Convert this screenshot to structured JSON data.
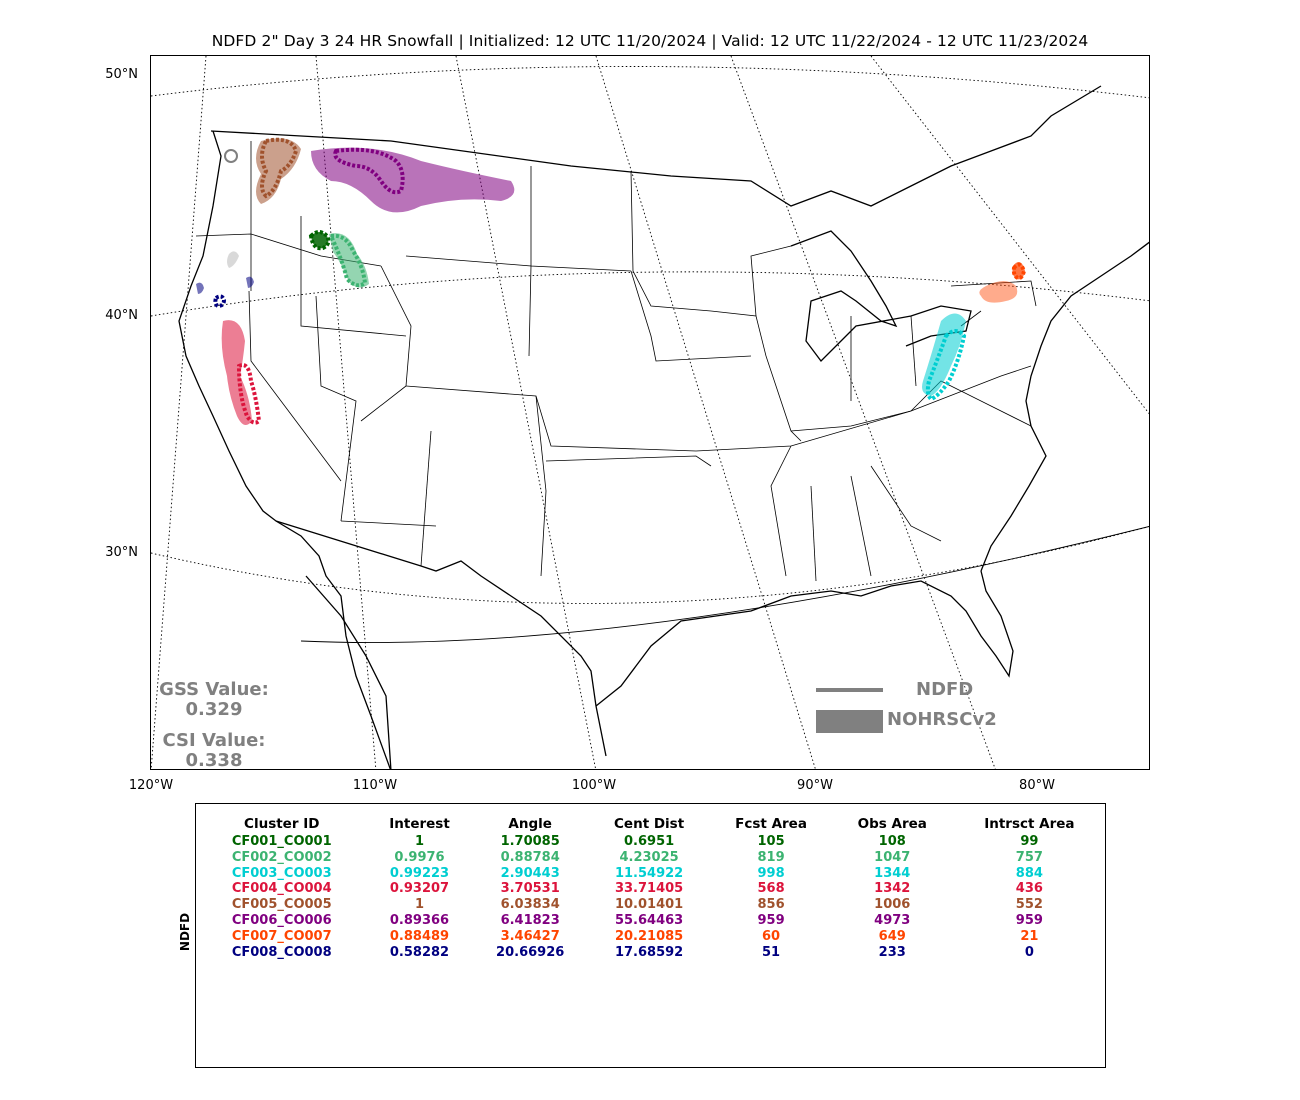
{
  "title": "NDFD 2\" Day 3 24 HR Snowfall | Initialized: 12 UTC 11/20/2024 | Valid: 12 UTC 11/22/2024 - 12 UTC 11/23/2024",
  "lat_labels": [
    "50°N",
    "40°N",
    "30°N"
  ],
  "lon_labels": [
    "120°W",
    "110°W",
    "100°W",
    "90°W",
    "80°W"
  ],
  "scores": {
    "gss_label": "GSS Value:",
    "gss_value": "0.329",
    "csi_label": "CSI Value:",
    "csi_value": "0.338"
  },
  "legend": {
    "forecast_label": "NDFD",
    "observed_label": "NOHRSCv2",
    "color": "#808080"
  },
  "table": {
    "side_label": "NDFD",
    "columns": [
      "Cluster ID",
      "Interest",
      "Angle",
      "Cent Dist",
      "Fcst Area",
      "Obs Area",
      "Intrsct Area"
    ],
    "rows": [
      {
        "id": "CF001_CO001",
        "interest": "1",
        "angle": "1.70085",
        "cent_dist": "0.6951",
        "fcst_area": "105",
        "obs_area": "108",
        "intrsct_area": "99",
        "color": "#006400"
      },
      {
        "id": "CF002_CO002",
        "interest": "0.9976",
        "angle": "0.88784",
        "cent_dist": "4.23025",
        "fcst_area": "819",
        "obs_area": "1047",
        "intrsct_area": "757",
        "color": "#3cb371"
      },
      {
        "id": "CF003_CO003",
        "interest": "0.99223",
        "angle": "2.90443",
        "cent_dist": "11.54922",
        "fcst_area": "998",
        "obs_area": "1344",
        "intrsct_area": "884",
        "color": "#00ced1"
      },
      {
        "id": "CF004_CO004",
        "interest": "0.93207",
        "angle": "3.70531",
        "cent_dist": "33.71405",
        "fcst_area": "568",
        "obs_area": "1342",
        "intrsct_area": "436",
        "color": "#dc143c"
      },
      {
        "id": "CF005_CO005",
        "interest": "1",
        "angle": "6.03834",
        "cent_dist": "10.01401",
        "fcst_area": "856",
        "obs_area": "1006",
        "intrsct_area": "552",
        "color": "#a0522d"
      },
      {
        "id": "CF006_CO006",
        "interest": "0.89366",
        "angle": "6.41823",
        "cent_dist": "55.64463",
        "fcst_area": "959",
        "obs_area": "4973",
        "intrsct_area": "959",
        "color": "#800080"
      },
      {
        "id": "CF007_CO007",
        "interest": "0.88489",
        "angle": "3.46427",
        "cent_dist": "20.21085",
        "fcst_area": "60",
        "obs_area": "649",
        "intrsct_area": "21",
        "color": "#ff4500"
      },
      {
        "id": "CF008_CO008",
        "interest": "0.58282",
        "angle": "20.66926",
        "cent_dist": "17.68592",
        "fcst_area": "51",
        "obs_area": "233",
        "intrsct_area": "0",
        "color": "#000080"
      }
    ]
  }
}
